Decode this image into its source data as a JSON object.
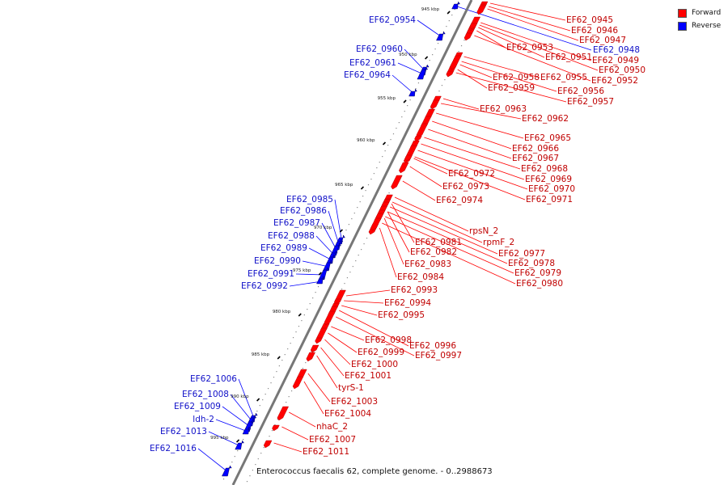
{
  "legend": [
    {
      "label": "Forward",
      "color": "#ff0000"
    },
    {
      "label": "Reverse",
      "color": "#0000ff"
    }
  ],
  "caption": "Enterococcus faecalis 62, complete genome. - 0..2988673",
  "colors": {
    "forward": "#ff0000",
    "reverse": "#0000ff",
    "backbone": "#777777"
  },
  "ticks": [
    "945 kbp",
    "950 kbp",
    "955 kbp",
    "960 kbp",
    "965 kbp",
    "970 kbp",
    "975 kbp",
    "980 kbp",
    "985 kbp",
    "990 kbp",
    "995 kbp"
  ],
  "forward_labels": [
    "EF62_0945",
    "EF62_0946",
    "EF62_0947",
    "EF62_0953",
    "EF62_0951",
    "EF62_0949",
    "EF62_0950",
    "EF62_0952",
    "EF62_0958",
    "EF62_0955",
    "EF62_0959",
    "EF62_0956",
    "EF62_0957",
    "EF62_0963",
    "EF62_0962",
    "EF62_0965",
    "EF62_0966",
    "EF62_0967",
    "EF62_0968",
    "EF62_0972",
    "EF62_0969",
    "EF62_0973",
    "EF62_0970",
    "EF62_0974",
    "EF62_0971",
    "rpsN_2",
    "rpmF_2",
    "EF62_0981",
    "EF62_0977",
    "EF62_0982",
    "EF62_0978",
    "EF62_0983",
    "EF62_0979",
    "EF62_0984",
    "EF62_0980",
    "EF62_0993",
    "EF62_0994",
    "EF62_0995",
    "EF62_0998",
    "EF62_0996",
    "EF62_0999",
    "EF62_0997",
    "EF62_1000",
    "EF62_1001",
    "tyrS-1",
    "EF62_1003",
    "EF62_1004",
    "nhaC_2",
    "EF62_1007",
    "EF62_1011"
  ],
  "reverse_labels": [
    "EF62_0948",
    "EF62_0954",
    "EF62_0960",
    "EF62_0961",
    "EF62_0964",
    "EF62_0985",
    "EF62_0986",
    "EF62_0987",
    "EF62_0988",
    "EF62_0989",
    "EF62_0990",
    "EF62_0991",
    "EF62_0992",
    "EF62_1006",
    "EF62_1008",
    "EF62_1009",
    "ldh-2",
    "EF62_1013",
    "EF62_1016"
  ]
}
